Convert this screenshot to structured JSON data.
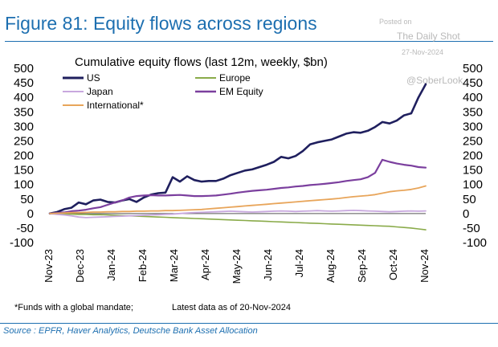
{
  "header": {
    "figure_title": "Figure 81: Equity flows across regions"
  },
  "watermark": {
    "line1": "Posted on",
    "line2": "The Daily Shot",
    "line3": "27-Nov-2024",
    "line4": "@SoberLook"
  },
  "footnote": "*Funds with a global mandate;",
  "latest_note": "Latest data as of 20-Nov-2024",
  "source": "Source : EPFR, Haver Analytics, Deutsche Bank Asset Allocation",
  "chart_data": {
    "type": "line",
    "title": "Cumulative equity flows (last 12m, weekly, $bn)",
    "xlabel": "",
    "ylabel": "",
    "ylim": [
      -100,
      500
    ],
    "yticks_left": [
      500,
      450,
      400,
      350,
      300,
      250,
      200,
      150,
      100,
      50,
      0,
      -50,
      -100
    ],
    "yticks_right": [
      500,
      450,
      400,
      350,
      300,
      250,
      200,
      150,
      100,
      50,
      0,
      -50,
      -100
    ],
    "yticks_left_labels": [
      "500",
      "450",
      "400",
      "350",
      "300",
      "250",
      "200",
      "150",
      "100",
      "50",
      "0",
      "-50",
      "-100"
    ],
    "yticks_right_labels": [
      "500",
      "450",
      "400",
      "350",
      "300",
      "250",
      "200",
      "150",
      "100",
      "50",
      "0",
      "-50",
      "-100"
    ],
    "xticks": [
      "Nov-23",
      "Dec-23",
      "Jan-24",
      "Feb-24",
      "Mar-24",
      "Apr-24",
      "May-24",
      "Jun-24",
      "Jul-24",
      "Aug-24",
      "Sep-24",
      "Oct-24",
      "Nov-24"
    ],
    "grid": false,
    "legend_position": "top-left",
    "x": [
      "2023-11-22",
      "2023-11-29",
      "2023-12-06",
      "2023-12-13",
      "2023-12-20",
      "2023-12-27",
      "2024-01-03",
      "2024-01-10",
      "2024-01-17",
      "2024-01-24",
      "2024-01-31",
      "2024-02-07",
      "2024-02-14",
      "2024-02-21",
      "2024-02-28",
      "2024-03-06",
      "2024-03-13",
      "2024-03-20",
      "2024-03-27",
      "2024-04-03",
      "2024-04-10",
      "2024-04-17",
      "2024-04-24",
      "2024-05-01",
      "2024-05-08",
      "2024-05-15",
      "2024-05-22",
      "2024-05-29",
      "2024-06-05",
      "2024-06-12",
      "2024-06-19",
      "2024-06-26",
      "2024-07-03",
      "2024-07-10",
      "2024-07-17",
      "2024-07-24",
      "2024-07-31",
      "2024-08-07",
      "2024-08-14",
      "2024-08-21",
      "2024-08-28",
      "2024-09-04",
      "2024-09-11",
      "2024-09-18",
      "2024-09-25",
      "2024-10-02",
      "2024-10-09",
      "2024-10-16",
      "2024-10-23",
      "2024-10-30",
      "2024-11-06",
      "2024-11-13",
      "2024-11-20"
    ],
    "series": [
      {
        "name": "US",
        "color": "#1f1f5e",
        "values": [
          0,
          5,
          15,
          20,
          38,
          32,
          45,
          48,
          40,
          38,
          45,
          50,
          40,
          55,
          65,
          70,
          72,
          125,
          110,
          128,
          115,
          110,
          112,
          112,
          120,
          132,
          140,
          148,
          152,
          160,
          168,
          178,
          195,
          190,
          198,
          215,
          238,
          245,
          250,
          255,
          265,
          275,
          280,
          278,
          285,
          298,
          315,
          310,
          320,
          338,
          345,
          400,
          445
        ]
      },
      {
        "name": "Europe",
        "color": "#8aab4a",
        "values": [
          0,
          -1,
          -2,
          -2,
          -3,
          -3,
          -4,
          -4,
          -5,
          -6,
          -7,
          -8,
          -9,
          -10,
          -11,
          -12,
          -13,
          -14,
          -15,
          -16,
          -17,
          -18,
          -19,
          -20,
          -21,
          -22,
          -23,
          -24,
          -25,
          -26,
          -27,
          -28,
          -29,
          -30,
          -31,
          -32,
          -33,
          -34,
          -35,
          -36,
          -37,
          -38,
          -39,
          -40,
          -41,
          -42,
          -43,
          -44,
          -46,
          -48,
          -50,
          -53,
          -56
        ]
      },
      {
        "name": "Japan",
        "color": "#c8a8de",
        "values": [
          0,
          -3,
          -5,
          -8,
          -12,
          -14,
          -13,
          -12,
          -11,
          -10,
          -9,
          -8,
          -7,
          -6,
          -5,
          -4,
          -3,
          -2,
          0,
          2,
          3,
          4,
          5,
          6,
          7,
          8,
          7,
          6,
          5,
          6,
          7,
          8,
          9,
          8,
          7,
          8,
          9,
          10,
          9,
          8,
          9,
          10,
          11,
          10,
          9,
          8,
          7,
          6,
          7,
          8,
          9,
          8,
          9
        ]
      },
      {
        "name": "EM Equity",
        "color": "#7b3f9e",
        "values": [
          0,
          2,
          4,
          8,
          10,
          13,
          18,
          22,
          30,
          38,
          45,
          55,
          60,
          62,
          63,
          62,
          62,
          63,
          64,
          62,
          60,
          60,
          61,
          62,
          65,
          68,
          72,
          75,
          78,
          80,
          82,
          85,
          88,
          90,
          93,
          95,
          98,
          100,
          102,
          105,
          108,
          112,
          115,
          118,
          125,
          140,
          185,
          178,
          172,
          168,
          165,
          160,
          158
        ]
      },
      {
        "name": "International*",
        "color": "#e8a55a",
        "values": [
          0,
          1,
          2,
          3,
          3,
          4,
          5,
          5,
          6,
          6,
          7,
          7,
          8,
          8,
          9,
          9,
          10,
          10,
          11,
          12,
          13,
          14,
          16,
          18,
          20,
          22,
          24,
          26,
          28,
          30,
          32,
          34,
          36,
          38,
          40,
          42,
          44,
          46,
          48,
          50,
          52,
          55,
          58,
          60,
          62,
          65,
          70,
          75,
          78,
          80,
          83,
          88,
          95
        ]
      }
    ]
  }
}
